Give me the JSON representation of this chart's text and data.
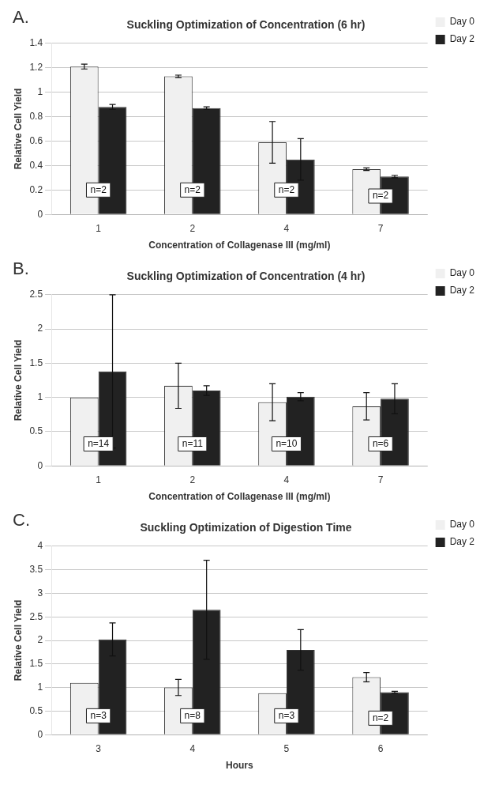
{
  "chart_data": [
    {
      "type": "bar",
      "title": "Suckling Optimization of Concentration (6 hr)",
      "xlabel": "Concentration of Collagenase III (mg/ml)",
      "ylabel": "Relative Cell Yield",
      "categories": [
        "1",
        "2",
        "4",
        "7"
      ],
      "series": [
        {
          "name": "Day 0",
          "color": "#f0f0f0",
          "values": [
            1.21,
            1.13,
            0.59,
            0.37
          ],
          "errors": [
            0.02,
            0.01,
            0.17,
            0.01
          ]
        },
        {
          "name": "Day 2",
          "color": "#222222",
          "values": [
            0.88,
            0.87,
            0.45,
            0.31
          ],
          "errors": [
            0.02,
            0.01,
            0.17,
            0.01
          ]
        }
      ],
      "ylim": [
        0,
        1.4
      ],
      "yticks": [
        0,
        0.2,
        0.4,
        0.6,
        0.8,
        1,
        1.2,
        1.4
      ],
      "grid": "y",
      "legend": "top right",
      "annotations": [
        "A.",
        {
          "text": "n=2",
          "x": "1",
          "y": 0.2
        },
        {
          "text": "n=2",
          "x": "2",
          "y": 0.2
        },
        {
          "text": "n=2",
          "x": "4",
          "y": 0.2
        },
        {
          "text": "n=2",
          "x": "7",
          "y": 0.15
        }
      ]
    },
    {
      "type": "bar",
      "title": "Suckling Optimization of Concentration (4 hr)",
      "xlabel": "Concentration of Collagenase III (mg/ml)",
      "ylabel": "Relative Cell Yield",
      "categories": [
        "1",
        "2",
        "4",
        "7"
      ],
      "series": [
        {
          "name": "Day 0",
          "color": "#f0f0f0",
          "values": [
            1.0,
            1.17,
            0.93,
            0.87
          ],
          "errors": [
            null,
            0.33,
            0.27,
            0.2
          ]
        },
        {
          "name": "Day 2",
          "color": "#222222",
          "values": [
            1.38,
            1.1,
            1.01,
            0.98
          ],
          "errors": [
            1.12,
            0.07,
            0.06,
            0.22
          ]
        }
      ],
      "ylim": [
        0,
        2.5
      ],
      "yticks": [
        0,
        0.5,
        1,
        1.5,
        2,
        2.5
      ],
      "grid": "y",
      "legend": "top right",
      "annotations": [
        "B.",
        {
          "text": "n=14",
          "x": "1",
          "y": 0.32
        },
        {
          "text": "n=11",
          "x": "2",
          "y": 0.32
        },
        {
          "text": "n=10",
          "x": "4",
          "y": 0.32
        },
        {
          "text": "n=6",
          "x": "7",
          "y": 0.32
        }
      ]
    },
    {
      "type": "bar",
      "title": "Suckling Optimization of Digestion Time",
      "xlabel": "Hours",
      "ylabel": "Relative Cell Yield",
      "categories": [
        "3",
        "4",
        "5",
        "6"
      ],
      "series": [
        {
          "name": "Day 0",
          "color": "#f0f0f0",
          "values": [
            1.1,
            1.0,
            0.88,
            1.22
          ],
          "errors": [
            null,
            0.17,
            null,
            0.1
          ]
        },
        {
          "name": "Day 2",
          "color": "#222222",
          "values": [
            2.02,
            2.65,
            1.8,
            0.9
          ],
          "errors": [
            0.35,
            1.05,
            0.43,
            0.02
          ]
        }
      ],
      "ylim": [
        0,
        4
      ],
      "yticks": [
        0,
        0.5,
        1,
        1.5,
        2,
        2.5,
        3,
        3.5,
        4
      ],
      "grid": "y",
      "legend": "top right",
      "annotations": [
        "C.",
        {
          "text": "n=3",
          "x": "3",
          "y": 0.4
        },
        {
          "text": "n=8",
          "x": "4",
          "y": 0.4
        },
        {
          "text": "n=3",
          "x": "5",
          "y": 0.4
        },
        {
          "text": "n=2",
          "x": "6",
          "y": 0.35
        }
      ]
    }
  ]
}
